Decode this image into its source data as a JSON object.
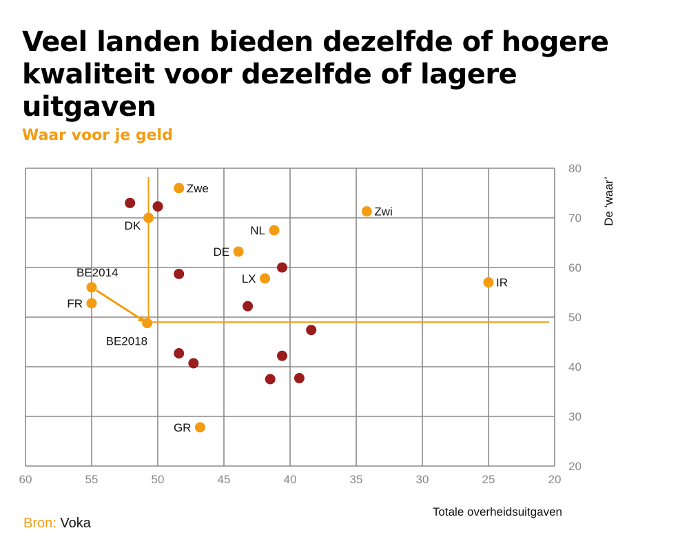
{
  "title": "Veel landen bieden dezelfde of hogere kwaliteit voor dezelfde of lagere uitgaven",
  "subtitle": "Waar voor je geld",
  "source": {
    "label": "Bron:",
    "value": "Voka"
  },
  "colors": {
    "orange": "#f39c12",
    "darkred": "#9b1c1c",
    "grid": "#8a8a8a",
    "text": "#111111"
  },
  "chart_data": {
    "type": "scatter",
    "xlabel": "Totale overheidsuitgaven",
    "ylabel": "De ‘waar’",
    "xlim": [
      60,
      20
    ],
    "ylim": [
      20,
      80
    ],
    "xticks": [
      60,
      55,
      50,
      45,
      40,
      35,
      30,
      25,
      20
    ],
    "yticks": [
      80,
      70,
      60,
      50,
      40,
      30,
      20
    ],
    "reference": {
      "x": 50.7,
      "y": 49
    },
    "trend_arrow": {
      "from": "BE2014",
      "to": "BE2018"
    },
    "labeled_points": [
      {
        "label": "Zwe",
        "x": 48.4,
        "y": 76,
        "label_pos": "right"
      },
      {
        "label": "DK",
        "x": 50.7,
        "y": 70,
        "label_pos": "below-left"
      },
      {
        "label": "Zwi",
        "x": 34.2,
        "y": 71.3,
        "label_pos": "right"
      },
      {
        "label": "NL",
        "x": 41.2,
        "y": 67.5,
        "label_pos": "left"
      },
      {
        "label": "DE",
        "x": 43.9,
        "y": 63.2,
        "label_pos": "left"
      },
      {
        "label": "LX",
        "x": 41.9,
        "y": 57.8,
        "label_pos": "left"
      },
      {
        "label": "IR",
        "x": 25,
        "y": 57,
        "label_pos": "right"
      },
      {
        "label": "BE2014",
        "x": 55,
        "y": 56,
        "label_pos": "above"
      },
      {
        "label": "FR",
        "x": 55,
        "y": 52.8,
        "label_pos": "left"
      },
      {
        "label": "BE2018",
        "x": 50.8,
        "y": 48.8,
        "label_pos": "below"
      },
      {
        "label": "GR",
        "x": 46.8,
        "y": 27.8,
        "label_pos": "left"
      }
    ],
    "other_points": [
      {
        "x": 52.1,
        "y": 73
      },
      {
        "x": 50,
        "y": 72.3
      },
      {
        "x": 48.4,
        "y": 58.7
      },
      {
        "x": 40.6,
        "y": 60
      },
      {
        "x": 43.2,
        "y": 52.2
      },
      {
        "x": 38.4,
        "y": 47.4
      },
      {
        "x": 48.4,
        "y": 42.7
      },
      {
        "x": 47.3,
        "y": 40.7
      },
      {
        "x": 40.6,
        "y": 42.2
      },
      {
        "x": 41.5,
        "y": 37.5
      },
      {
        "x": 39.3,
        "y": 37.7
      }
    ]
  }
}
